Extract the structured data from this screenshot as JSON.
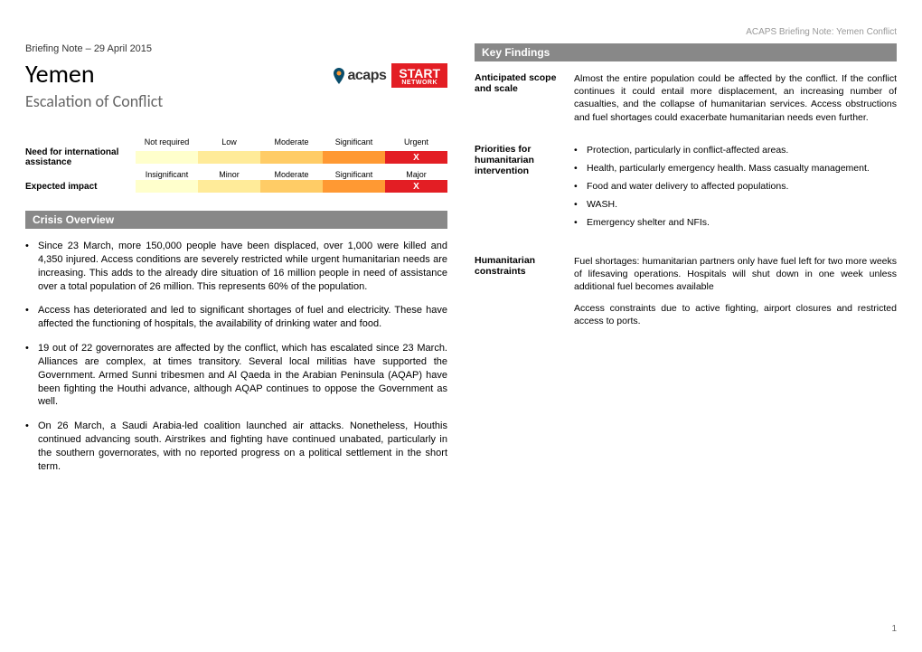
{
  "header_right": "ACAPS Briefing Note: Yemen Conflict",
  "briefing": "Briefing Note – 29 April 2015",
  "title": "Yemen",
  "subtitle": "Escalation of Conflict",
  "logos": {
    "acaps": "acaps",
    "start_top": "START",
    "start_bottom": "NETWORK"
  },
  "scale": {
    "row1": {
      "label": "Need for international assistance",
      "headers": [
        "Not required",
        "Low",
        "Moderate",
        "Significant",
        "Urgent"
      ],
      "colors": [
        "#ffffcc",
        "#ffeb99",
        "#ffcc66",
        "#ff9933",
        "#e31e24"
      ],
      "x_index": 4
    },
    "row2": {
      "label": "Expected impact",
      "headers": [
        "Insignificant",
        "Minor",
        "Moderate",
        "Significant",
        "Major"
      ],
      "colors": [
        "#ffffcc",
        "#ffeb99",
        "#ffcc66",
        "#ff9933",
        "#e31e24"
      ],
      "x_index": 4
    }
  },
  "crisis_title": "Crisis Overview",
  "crisis_bullets": [
    "Since 23 March, more 150,000 people have been displaced, over 1,000 were killed and 4,350 injured. Access conditions are severely restricted while urgent humanitarian needs are increasing. This adds to the already dire situation of 16 million people in need of assistance over a total population of 26 million. This represents 60% of the population.",
    "Access has deteriorated and led to significant shortages of fuel and electricity. These have affected the functioning of hospitals, the availability of drinking water and food.",
    "19 out of 22 governorates are affected by the conflict, which has escalated since 23 March. Alliances are complex, at times transitory. Several local militias have supported the Government. Armed Sunni tribesmen and Al Qaeda in the Arabian Peninsula (AQAP) have been fighting the Houthi advance, although AQAP continues to oppose the Government as well.",
    "On 26 March, a Saudi Arabia-led coalition launched air attacks. Nonetheless, Houthis continued advancing south. Airstrikes and fighting have continued unabated, particularly in the southern governorates, with no reported progress on a political settlement in the short term."
  ],
  "key_findings_title": "Key Findings",
  "findings": {
    "anticipated": {
      "label": "Anticipated scope and scale",
      "text": "Almost the entire population could be affected by the conflict. If the conflict continues it could entail more displacement, an increasing number of casualties, and the collapse of humanitarian services. Access obstructions and fuel shortages could exacerbate humanitarian needs even further."
    },
    "priorities": {
      "label": "Priorities for humanitarian intervention",
      "bullets": [
        "Protection, particularly in conflict-affected areas.",
        "Health, particularly emergency health. Mass casualty management.",
        "Food and water delivery to affected populations.",
        "WASH.",
        "Emergency shelter and NFIs."
      ]
    },
    "constraints": {
      "label": "Humanitarian constraints",
      "p1": "Fuel shortages: humanitarian partners only have fuel left for two more weeks of lifesaving operations. Hospitals will shut down in one week unless additional fuel becomes available",
      "p2": "Access constraints due to active fighting, airport closures and restricted access to ports."
    }
  },
  "page_num": "1"
}
